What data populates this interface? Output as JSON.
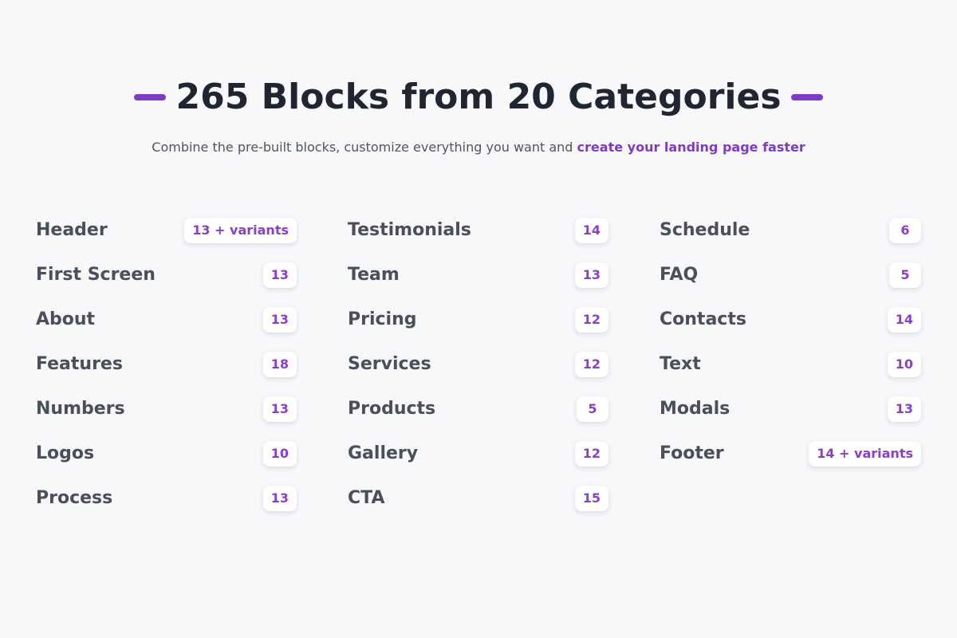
{
  "header": {
    "title": "265 Blocks from 20 Categories",
    "subtitle": "Combine the pre-built blocks, customize everything you want and",
    "subtitle_link": "create your landing page faster"
  },
  "columns": [
    [
      {
        "name": "Header",
        "count": "13 + variants"
      },
      {
        "name": "First Screen",
        "count": "13"
      },
      {
        "name": "About",
        "count": "13"
      },
      {
        "name": "Features",
        "count": "18"
      },
      {
        "name": "Numbers",
        "count": "13"
      },
      {
        "name": "Logos",
        "count": "10"
      },
      {
        "name": "Process",
        "count": "13"
      }
    ],
    [
      {
        "name": "Testimonials",
        "count": "14"
      },
      {
        "name": "Team",
        "count": "13"
      },
      {
        "name": "Pricing",
        "count": "12"
      },
      {
        "name": "Services",
        "count": "12"
      },
      {
        "name": "Products",
        "count": "5"
      },
      {
        "name": "Gallery",
        "count": "12"
      },
      {
        "name": "CTA",
        "count": "15"
      }
    ],
    [
      {
        "name": "Schedule",
        "count": "6"
      },
      {
        "name": "FAQ",
        "count": "5"
      },
      {
        "name": "Contacts",
        "count": "14"
      },
      {
        "name": "Text",
        "count": "10"
      },
      {
        "name": "Modals",
        "count": "13"
      },
      {
        "name": "Footer",
        "count": "14 + variants"
      }
    ]
  ]
}
